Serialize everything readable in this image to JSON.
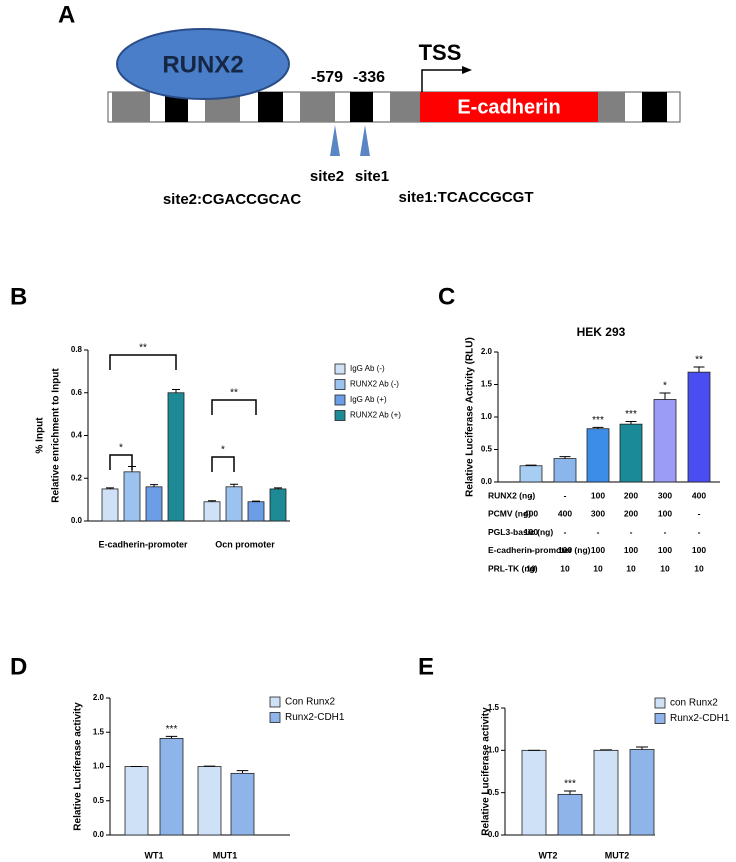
{
  "diagram": {
    "panel": "A",
    "protein": "RUNX2",
    "positions": [
      "-579",
      "-336"
    ],
    "tss": "TSS",
    "gene": "E-cadherin",
    "sites": [
      "site2",
      "site1"
    ],
    "sequences": [
      "site2:CGACCGCAC",
      "site1:TCACCGCGT"
    ]
  },
  "chart_data": [
    {
      "type": "bar",
      "panel": "B",
      "ylabel": [
        "% Input",
        "Relative enrichment to Input"
      ],
      "categories": [
        "E-cadherin-promoter",
        "Ocn promoter"
      ],
      "series": [
        {
          "name": "IgG Ab (-)",
          "color": "#cfe1f6",
          "values": [
            0.15,
            0.09
          ],
          "errors": [
            0.005,
            0.005
          ]
        },
        {
          "name": "RUNX2 Ab (-)",
          "color": "#9cc3f0",
          "values": [
            0.23,
            0.16
          ],
          "errors": [
            0.025,
            0.012
          ]
        },
        {
          "name": "IgG Ab (+)",
          "color": "#6c9ee8",
          "values": [
            0.16,
            0.09
          ],
          "errors": [
            0.01,
            0.003
          ]
        },
        {
          "name": "RUNX2 Ab (+)",
          "color": "#1d8a96",
          "values": [
            0.6,
            0.15
          ],
          "errors": [
            0.015,
            0.005
          ]
        }
      ],
      "annotations": [
        "*",
        "**",
        "*",
        "**"
      ],
      "ylim": [
        0,
        0.8
      ],
      "yticks": [
        {
          "value": 0,
          "label": "0.0"
        },
        0.2,
        0.4,
        0.6,
        0.8
      ]
    },
    {
      "type": "bar",
      "panel": "C",
      "title": "HEK 293",
      "ylabel": "Relative Luciferase Activity (RLU)",
      "values": [
        0.25,
        0.36,
        0.82,
        0.89,
        1.27,
        1.69
      ],
      "errors": [
        0.01,
        0.03,
        0.02,
        0.04,
        0.1,
        0.08
      ],
      "colors": [
        "#a8cdf2",
        "#8ab6ec",
        "#3c8de8",
        "#1a8a98",
        "#9b9cf5",
        "#4a4ef0"
      ],
      "stars": [
        null,
        null,
        "***",
        "***",
        "*",
        "**"
      ],
      "ylim": [
        0,
        2
      ],
      "yticks": [
        {
          "value": 0,
          "label": "0.0"
        },
        0.5,
        {
          "value": 1,
          "label": "1.0"
        },
        1.5,
        {
          "value": 2,
          "label": "2.0"
        }
      ],
      "table": [
        [
          "RUNX2 (ng)",
          "-",
          "-",
          "100",
          "200",
          "300",
          "400"
        ],
        [
          "PCMV (ng)",
          "400",
          "400",
          "300",
          "200",
          "100",
          "-"
        ],
        [
          "PGL3-basic (ng)",
          "100",
          "-",
          "-",
          "-",
          "-",
          "-"
        ],
        [
          "E-cadherin-promoter (ng)",
          "-",
          "100",
          "100",
          "100",
          "100",
          "100"
        ],
        [
          "PRL-TK (ng)",
          "10",
          "10",
          "10",
          "10",
          "10",
          "10"
        ]
      ]
    },
    {
      "type": "bar",
      "panel": "D",
      "ylabel": "Relative Luciferase activity",
      "categories": [
        "WT1",
        "MUT1"
      ],
      "series": [
        {
          "name": "Con  Runx2",
          "color": "#cfe1f6",
          "values": [
            1.0,
            1.0
          ],
          "errors": [
            0,
            0.005
          ]
        },
        {
          "name": "Runx2-CDH1",
          "color": "#8fb4ea",
          "values": [
            1.41,
            0.9
          ],
          "errors": [
            0.03,
            0.04
          ],
          "stars": [
            "***",
            null
          ]
        }
      ],
      "ylim": [
        0,
        2
      ],
      "yticks": [
        {
          "value": 0,
          "label": "0.0"
        },
        0.5,
        {
          "value": 1,
          "label": "1.0"
        },
        1.5,
        {
          "value": 2,
          "label": "2.0"
        }
      ]
    },
    {
      "type": "bar",
      "panel": "E",
      "ylabel": "Relative Luciferase activity",
      "categories": [
        "WT2",
        "MUT2"
      ],
      "series": [
        {
          "name": "con Runx2",
          "color": "#cfe1f6",
          "values": [
            1.0,
            1.0
          ],
          "errors": [
            0,
            0.005
          ]
        },
        {
          "name": "Runx2-CDH1",
          "color": "#8fb4ea",
          "values": [
            0.48,
            1.01
          ],
          "errors": [
            0.04,
            0.03
          ],
          "stars": [
            "***",
            null
          ]
        }
      ],
      "ylim": [
        0,
        1.5
      ],
      "yticks": [
        {
          "value": 0,
          "label": "0.0"
        },
        0.5,
        {
          "value": 1,
          "label": "1.0"
        },
        1.5
      ]
    }
  ]
}
